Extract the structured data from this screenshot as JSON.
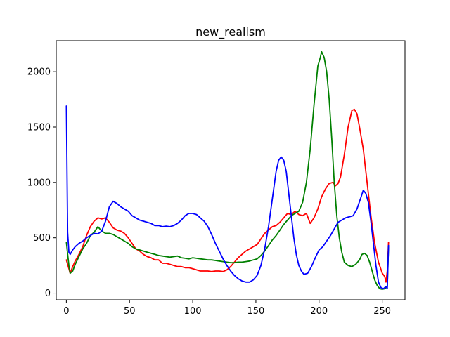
{
  "chart_data": {
    "type": "line",
    "title": "new_realism",
    "xlabel": "",
    "ylabel": "",
    "xlim": [
      -8,
      268
    ],
    "ylim": [
      -60,
      2280
    ],
    "xticks": [
      0,
      50,
      100,
      150,
      200,
      250
    ],
    "yticks": [
      0,
      500,
      1000,
      1500,
      2000
    ],
    "grid": false,
    "legend": "none",
    "series": [
      {
        "color": "#ff0000",
        "points": [
          [
            0,
            300
          ],
          [
            2,
            220
          ],
          [
            3,
            180
          ],
          [
            5,
            240
          ],
          [
            7,
            290
          ],
          [
            10,
            350
          ],
          [
            13,
            420
          ],
          [
            16,
            520
          ],
          [
            19,
            600
          ],
          [
            22,
            650
          ],
          [
            25,
            680
          ],
          [
            28,
            670
          ],
          [
            31,
            680
          ],
          [
            34,
            640
          ],
          [
            37,
            590
          ],
          [
            40,
            570
          ],
          [
            43,
            560
          ],
          [
            46,
            540
          ],
          [
            49,
            500
          ],
          [
            52,
            450
          ],
          [
            55,
            400
          ],
          [
            58,
            380
          ],
          [
            61,
            350
          ],
          [
            64,
            330
          ],
          [
            67,
            320
          ],
          [
            70,
            300
          ],
          [
            73,
            300
          ],
          [
            76,
            270
          ],
          [
            79,
            270
          ],
          [
            82,
            260
          ],
          [
            85,
            250
          ],
          [
            88,
            240
          ],
          [
            91,
            240
          ],
          [
            94,
            230
          ],
          [
            97,
            230
          ],
          [
            100,
            220
          ],
          [
            103,
            210
          ],
          [
            106,
            200
          ],
          [
            109,
            200
          ],
          [
            112,
            200
          ],
          [
            115,
            195
          ],
          [
            118,
            200
          ],
          [
            121,
            200
          ],
          [
            124,
            195
          ],
          [
            127,
            210
          ],
          [
            130,
            240
          ],
          [
            133,
            280
          ],
          [
            136,
            320
          ],
          [
            139,
            350
          ],
          [
            142,
            380
          ],
          [
            145,
            400
          ],
          [
            148,
            420
          ],
          [
            151,
            440
          ],
          [
            154,
            490
          ],
          [
            157,
            540
          ],
          [
            160,
            570
          ],
          [
            163,
            600
          ],
          [
            166,
            610
          ],
          [
            169,
            640
          ],
          [
            172,
            680
          ],
          [
            175,
            720
          ],
          [
            178,
            710
          ],
          [
            181,
            740
          ],
          [
            184,
            710
          ],
          [
            187,
            700
          ],
          [
            190,
            720
          ],
          [
            193,
            630
          ],
          [
            196,
            680
          ],
          [
            199,
            760
          ],
          [
            202,
            870
          ],
          [
            205,
            940
          ],
          [
            208,
            990
          ],
          [
            211,
            1000
          ],
          [
            213,
            970
          ],
          [
            215,
            990
          ],
          [
            217,
            1050
          ],
          [
            220,
            1250
          ],
          [
            223,
            1500
          ],
          [
            226,
            1650
          ],
          [
            228,
            1660
          ],
          [
            230,
            1620
          ],
          [
            232,
            1500
          ],
          [
            235,
            1300
          ],
          [
            238,
            1000
          ],
          [
            241,
            700
          ],
          [
            244,
            450
          ],
          [
            247,
            280
          ],
          [
            250,
            180
          ],
          [
            252,
            150
          ],
          [
            253,
            100
          ],
          [
            254,
            200
          ],
          [
            255,
            460
          ]
        ]
      },
      {
        "color": "#008000",
        "points": [
          [
            0,
            460
          ],
          [
            2,
            250
          ],
          [
            3,
            180
          ],
          [
            5,
            200
          ],
          [
            7,
            260
          ],
          [
            10,
            330
          ],
          [
            13,
            400
          ],
          [
            16,
            450
          ],
          [
            19,
            520
          ],
          [
            22,
            550
          ],
          [
            25,
            600
          ],
          [
            28,
            560
          ],
          [
            31,
            540
          ],
          [
            34,
            540
          ],
          [
            37,
            530
          ],
          [
            40,
            510
          ],
          [
            43,
            490
          ],
          [
            46,
            470
          ],
          [
            49,
            450
          ],
          [
            52,
            420
          ],
          [
            55,
            400
          ],
          [
            58,
            390
          ],
          [
            61,
            380
          ],
          [
            64,
            370
          ],
          [
            67,
            360
          ],
          [
            70,
            350
          ],
          [
            73,
            340
          ],
          [
            76,
            335
          ],
          [
            79,
            330
          ],
          [
            82,
            325
          ],
          [
            85,
            330
          ],
          [
            88,
            335
          ],
          [
            91,
            320
          ],
          [
            94,
            315
          ],
          [
            97,
            310
          ],
          [
            100,
            320
          ],
          [
            103,
            315
          ],
          [
            106,
            310
          ],
          [
            109,
            305
          ],
          [
            112,
            300
          ],
          [
            115,
            300
          ],
          [
            118,
            295
          ],
          [
            121,
            290
          ],
          [
            124,
            285
          ],
          [
            127,
            280
          ],
          [
            130,
            275
          ],
          [
            133,
            275
          ],
          [
            136,
            280
          ],
          [
            139,
            280
          ],
          [
            142,
            285
          ],
          [
            145,
            290
          ],
          [
            148,
            300
          ],
          [
            151,
            310
          ],
          [
            154,
            340
          ],
          [
            157,
            380
          ],
          [
            160,
            430
          ],
          [
            163,
            480
          ],
          [
            166,
            520
          ],
          [
            169,
            570
          ],
          [
            172,
            620
          ],
          [
            175,
            660
          ],
          [
            178,
            700
          ],
          [
            181,
            720
          ],
          [
            184,
            740
          ],
          [
            187,
            820
          ],
          [
            190,
            1000
          ],
          [
            193,
            1300
          ],
          [
            196,
            1700
          ],
          [
            199,
            2050
          ],
          [
            201,
            2130
          ],
          [
            202,
            2180
          ],
          [
            204,
            2130
          ],
          [
            206,
            2000
          ],
          [
            208,
            1750
          ],
          [
            210,
            1400
          ],
          [
            212,
            1000
          ],
          [
            214,
            700
          ],
          [
            216,
            500
          ],
          [
            218,
            370
          ],
          [
            220,
            280
          ],
          [
            223,
            250
          ],
          [
            226,
            240
          ],
          [
            229,
            260
          ],
          [
            232,
            300
          ],
          [
            234,
            350
          ],
          [
            236,
            360
          ],
          [
            238,
            340
          ],
          [
            240,
            280
          ],
          [
            242,
            200
          ],
          [
            244,
            120
          ],
          [
            246,
            70
          ],
          [
            248,
            40
          ],
          [
            250,
            35
          ],
          [
            252,
            40
          ],
          [
            254,
            60
          ],
          [
            255,
            420
          ]
        ]
      },
      {
        "color": "#0000ff",
        "points": [
          [
            0,
            1690
          ],
          [
            1,
            550
          ],
          [
            2,
            370
          ],
          [
            3,
            350
          ],
          [
            5,
            390
          ],
          [
            7,
            420
          ],
          [
            10,
            450
          ],
          [
            13,
            470
          ],
          [
            16,
            500
          ],
          [
            19,
            520
          ],
          [
            22,
            540
          ],
          [
            25,
            535
          ],
          [
            28,
            560
          ],
          [
            31,
            650
          ],
          [
            34,
            780
          ],
          [
            37,
            830
          ],
          [
            40,
            810
          ],
          [
            43,
            780
          ],
          [
            46,
            760
          ],
          [
            49,
            740
          ],
          [
            52,
            700
          ],
          [
            55,
            680
          ],
          [
            58,
            660
          ],
          [
            61,
            650
          ],
          [
            64,
            640
          ],
          [
            67,
            630
          ],
          [
            70,
            610
          ],
          [
            73,
            610
          ],
          [
            76,
            600
          ],
          [
            79,
            605
          ],
          [
            82,
            600
          ],
          [
            85,
            610
          ],
          [
            88,
            630
          ],
          [
            91,
            660
          ],
          [
            94,
            700
          ],
          [
            97,
            720
          ],
          [
            100,
            720
          ],
          [
            103,
            710
          ],
          [
            106,
            680
          ],
          [
            109,
            650
          ],
          [
            112,
            600
          ],
          [
            115,
            530
          ],
          [
            118,
            450
          ],
          [
            121,
            380
          ],
          [
            124,
            310
          ],
          [
            127,
            250
          ],
          [
            130,
            200
          ],
          [
            133,
            160
          ],
          [
            136,
            130
          ],
          [
            139,
            110
          ],
          [
            142,
            100
          ],
          [
            145,
            100
          ],
          [
            148,
            120
          ],
          [
            151,
            160
          ],
          [
            154,
            250
          ],
          [
            157,
            400
          ],
          [
            160,
            600
          ],
          [
            163,
            850
          ],
          [
            166,
            1100
          ],
          [
            168,
            1200
          ],
          [
            170,
            1230
          ],
          [
            172,
            1200
          ],
          [
            174,
            1100
          ],
          [
            176,
            900
          ],
          [
            178,
            700
          ],
          [
            180,
            500
          ],
          [
            182,
            350
          ],
          [
            184,
            250
          ],
          [
            186,
            200
          ],
          [
            188,
            170
          ],
          [
            191,
            180
          ],
          [
            194,
            240
          ],
          [
            197,
            320
          ],
          [
            200,
            390
          ],
          [
            203,
            420
          ],
          [
            206,
            470
          ],
          [
            209,
            520
          ],
          [
            212,
            580
          ],
          [
            215,
            640
          ],
          [
            218,
            660
          ],
          [
            221,
            680
          ],
          [
            224,
            690
          ],
          [
            227,
            700
          ],
          [
            230,
            760
          ],
          [
            233,
            860
          ],
          [
            235,
            930
          ],
          [
            237,
            900
          ],
          [
            239,
            820
          ],
          [
            241,
            650
          ],
          [
            243,
            450
          ],
          [
            245,
            250
          ],
          [
            247,
            100
          ],
          [
            249,
            50
          ],
          [
            251,
            40
          ],
          [
            253,
            60
          ],
          [
            254,
            40
          ],
          [
            255,
            430
          ]
        ]
      }
    ]
  }
}
